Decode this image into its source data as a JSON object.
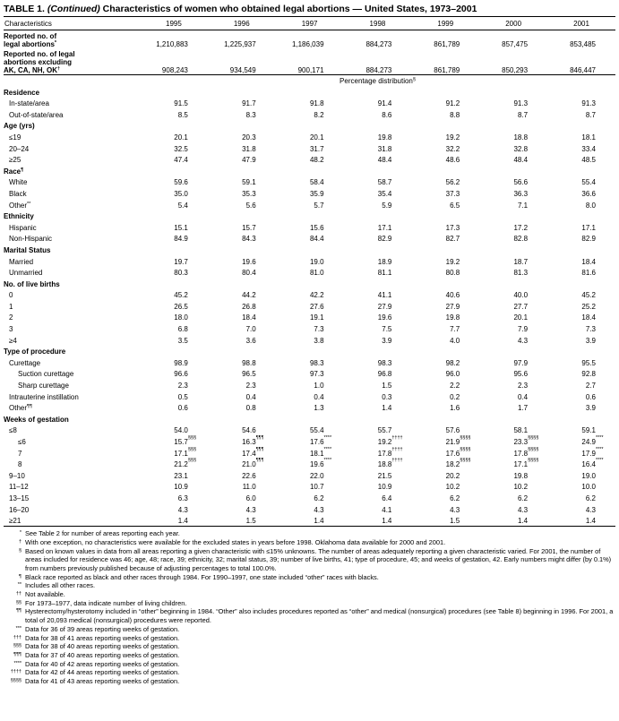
{
  "title": {
    "prefix": "TABLE 1.",
    "italic": "(Continued)",
    "rest": "Characteristics of women who obtained legal abortions — United States, 1973–2001"
  },
  "table": {
    "header": [
      "Characteristics",
      "1995",
      "1996",
      "1997",
      "1998",
      "1999",
      "2000",
      "2001"
    ],
    "counts": [
      {
        "label": "Reported no. of\nlegal abortions",
        "note": "*",
        "cells": [
          "1,210,883",
          "1,225,937",
          "1,186,039",
          "884,273",
          "861,789",
          "857,475",
          "853,485"
        ]
      },
      {
        "label": "Reported no. of legal\nabortions excluding\nAK, CA, NH, OK",
        "note": "†",
        "cells": [
          "908,243",
          "934,549",
          "900,171",
          "884,273",
          "861,789",
          "850,293",
          "846,447"
        ]
      }
    ],
    "span": {
      "label": "Percentage distribution",
      "note": "§"
    },
    "groups": [
      {
        "heading": "Residence",
        "rows": [
          {
            "label": "In-state/area",
            "cells": [
              "91.5",
              "91.7",
              "91.8",
              "91.4",
              "91.2",
              "91.3",
              "91.3"
            ]
          },
          {
            "label": "Out-of-state/area",
            "cells": [
              "8.5",
              "8.3",
              "8.2",
              "8.6",
              "8.8",
              "8.7",
              "8.7"
            ]
          }
        ]
      },
      {
        "heading": "Age (yrs)",
        "rows": [
          {
            "label": "≤19",
            "cells": [
              "20.1",
              "20.3",
              "20.1",
              "19.8",
              "19.2",
              "18.8",
              "18.1"
            ]
          },
          {
            "label": "20–24",
            "cells": [
              "32.5",
              "31.8",
              "31.7",
              "31.8",
              "32.2",
              "32.8",
              "33.4"
            ]
          },
          {
            "label": "≥25",
            "cells": [
              "47.4",
              "47.9",
              "48.2",
              "48.4",
              "48.6",
              "48.4",
              "48.5"
            ]
          }
        ]
      },
      {
        "heading": "Race",
        "note": "¶",
        "rows": [
          {
            "label": "White",
            "cells": [
              "59.6",
              "59.1",
              "58.4",
              "58.7",
              "56.2",
              "56.6",
              "55.4"
            ]
          },
          {
            "label": "Black",
            "cells": [
              "35.0",
              "35.3",
              "35.9",
              "35.4",
              "37.3",
              "36.3",
              "36.6"
            ]
          },
          {
            "label": "Other",
            "note": "**",
            "cells": [
              "5.4",
              "5.6",
              "5.7",
              "5.9",
              "6.5",
              "7.1",
              "8.0"
            ]
          }
        ]
      },
      {
        "heading": "Ethnicity",
        "rows": [
          {
            "label": "Hispanic",
            "cells": [
              "15.1",
              "15.7",
              "15.6",
              "17.1",
              "17.3",
              "17.2",
              "17.1"
            ]
          },
          {
            "label": "Non-Hispanic",
            "cells": [
              "84.9",
              "84.3",
              "84.4",
              "82.9",
              "82.7",
              "82.8",
              "82.9"
            ]
          }
        ]
      },
      {
        "heading": "Marital Status",
        "rows": [
          {
            "label": "Married",
            "cells": [
              "19.7",
              "19.6",
              "19.0",
              "18.9",
              "19.2",
              "18.7",
              "18.4"
            ]
          },
          {
            "label": "Unmarried",
            "cells": [
              "80.3",
              "80.4",
              "81.0",
              "81.1",
              "80.8",
              "81.3",
              "81.6"
            ]
          }
        ]
      },
      {
        "heading": "No. of live births",
        "rows": [
          {
            "label": "0",
            "cells": [
              "45.2",
              "44.2",
              "42.2",
              "41.1",
              "40.6",
              "40.0",
              "45.2"
            ]
          },
          {
            "label": "1",
            "cells": [
              "26.5",
              "26.8",
              "27.6",
              "27.9",
              "27.9",
              "27.7",
              "25.2"
            ]
          },
          {
            "label": "2",
            "cells": [
              "18.0",
              "18.4",
              "19.1",
              "19.6",
              "19.8",
              "20.1",
              "18.4"
            ]
          },
          {
            "label": "3",
            "cells": [
              "6.8",
              "7.0",
              "7.3",
              "7.5",
              "7.7",
              "7.9",
              "7.3"
            ]
          },
          {
            "label": "≥4",
            "cells": [
              "3.5",
              "3.6",
              "3.8",
              "3.9",
              "4.0",
              "4.3",
              "3.9"
            ]
          }
        ]
      },
      {
        "heading": "Type of procedure",
        "rows": [
          {
            "label": "Curettage",
            "cells": [
              "98.9",
              "98.8",
              "98.3",
              "98.3",
              "98.2",
              "97.9",
              "95.5"
            ],
            "rows": [
              {
                "label": "Suction curettage",
                "cells": [
                  "96.6",
                  "96.5",
                  "97.3",
                  "96.8",
                  "96.0",
                  "95.6",
                  "92.8"
                ]
              },
              {
                "label": "Sharp curettage",
                "cells": [
                  "2.3",
                  "2.3",
                  "1.0",
                  "1.5",
                  "2.2",
                  "2.3",
                  "2.7"
                ]
              }
            ]
          },
          {
            "label": "Intrauterine instillation",
            "cells": [
              "0.5",
              "0.4",
              "0.4",
              "0.3",
              "0.2",
              "0.4",
              "0.6"
            ]
          },
          {
            "label": "Other",
            "note": "¶¶",
            "cells": [
              "0.6",
              "0.8",
              "1.3",
              "1.4",
              "1.6",
              "1.7",
              "3.9"
            ]
          }
        ]
      },
      {
        "heading": "Weeks of gestation",
        "rows": [
          {
            "label": "≤8",
            "cells": [
              "54.0",
              "54.6",
              "55.4",
              "55.7",
              "57.6",
              "58.1",
              "59.1"
            ],
            "rows": [
              {
                "label": "≤6",
                "cells": [
                  "15.7",
                  "16.3",
                  "17.6",
                  "19.2",
                  "21.9",
                  "23.3",
                  "24.9"
                ],
                "cell_notes": [
                  "§§§",
                  "¶¶¶",
                  "****",
                  "††††",
                  "§§§§",
                  "§§§§",
                  "****"
                ]
              },
              {
                "label": "7",
                "cells": [
                  "17.1",
                  "17.4",
                  "18.1",
                  "17.8",
                  "17.6",
                  "17.8",
                  "17.9"
                ],
                "cell_notes": [
                  "§§§",
                  "¶¶¶",
                  "****",
                  "††††",
                  "§§§§",
                  "§§§§",
                  "****"
                ]
              },
              {
                "label": "8",
                "cells": [
                  "21.2",
                  "21.0",
                  "19.6",
                  "18.8",
                  "18.2",
                  "17.1",
                  "16.4"
                ],
                "cell_notes": [
                  "§§§",
                  "¶¶¶",
                  "****",
                  "††††",
                  "§§§§",
                  "§§§§",
                  "****"
                ]
              }
            ]
          },
          {
            "label": "9–10",
            "cells": [
              "23.1",
              "22.6",
              "22.0",
              "21.5",
              "20.2",
              "19.8",
              "19.0"
            ]
          },
          {
            "label": "11–12",
            "cells": [
              "10.9",
              "11.0",
              "10.7",
              "10.9",
              "10.2",
              "10.2",
              "10.0"
            ]
          },
          {
            "label": "13–15",
            "cells": [
              "6.3",
              "6.0",
              "6.2",
              "6.4",
              "6.2",
              "6.2",
              "6.2"
            ]
          },
          {
            "label": "16–20",
            "cells": [
              "4.3",
              "4.3",
              "4.3",
              "4.1",
              "4.3",
              "4.3",
              "4.3"
            ]
          },
          {
            "label": "≥21",
            "cells": [
              "1.4",
              "1.5",
              "1.4",
              "1.4",
              "1.5",
              "1.4",
              "1.4"
            ]
          }
        ]
      }
    ]
  },
  "footnotes": [
    {
      "symbol": "*",
      "text": "See Table 2 for number of areas reporting each year."
    },
    {
      "symbol": "†",
      "text": "With one exception, no characteristics were available for the excluded states in years before 1998. Oklahoma data available for 2000 and 2001."
    },
    {
      "symbol": "§",
      "text": "Based on known values in data from all areas reporting a given characteristic with ≤15% unknowns. The number of areas adequately reporting a given characteristic varied. For 2001, the number of areas included for residence was 46; age, 48; race, 39; ethnicity, 32; marital status, 39; number of live births, 41; type of procedure, 45; and weeks of gestation, 42. Early numbers might differ (by 0.1%) from numbers previously published because of adjusting percentages to total 100.0%."
    },
    {
      "symbol": "¶",
      "text": "Black race reported as black and other races through 1984. For 1990–1997, one state included “other” races with blacks."
    },
    {
      "symbol": "**",
      "text": "Includes all other races."
    },
    {
      "symbol": "††",
      "text": "Not available."
    },
    {
      "symbol": "§§",
      "text": "For 1973–1977, data indicate number of living children."
    },
    {
      "symbol": "¶¶",
      "text": "Hysterectomy/hysterotomy included in “other” beginning in 1984. “Other” also includes procedures reported as “other” and medical (nonsurgical) procedures (see Table 8) beginning in 1996. For 2001, a total of 20,093 medical (nonsurgical) procedures were reported."
    },
    {
      "symbol": "***",
      "text": "Data for 36 of 39 areas reporting weeks of gestation."
    },
    {
      "symbol": "†††",
      "text": "Data for 38 of 41 areas reporting weeks of gestation."
    },
    {
      "symbol": "§§§",
      "text": "Data for 38 of 40 areas reporting weeks of gestation."
    },
    {
      "symbol": "¶¶¶",
      "text": "Data for 37 of 40 areas reporting weeks of gestation."
    },
    {
      "symbol": "****",
      "text": "Data for 40 of 42 areas reporting weeks of gestation."
    },
    {
      "symbol": "††††",
      "text": "Data for 42 of 44 areas reporting weeks of gestation."
    },
    {
      "symbol": "§§§§",
      "text": "Data for 41 of 43 areas reporting weeks of gestation."
    }
  ]
}
